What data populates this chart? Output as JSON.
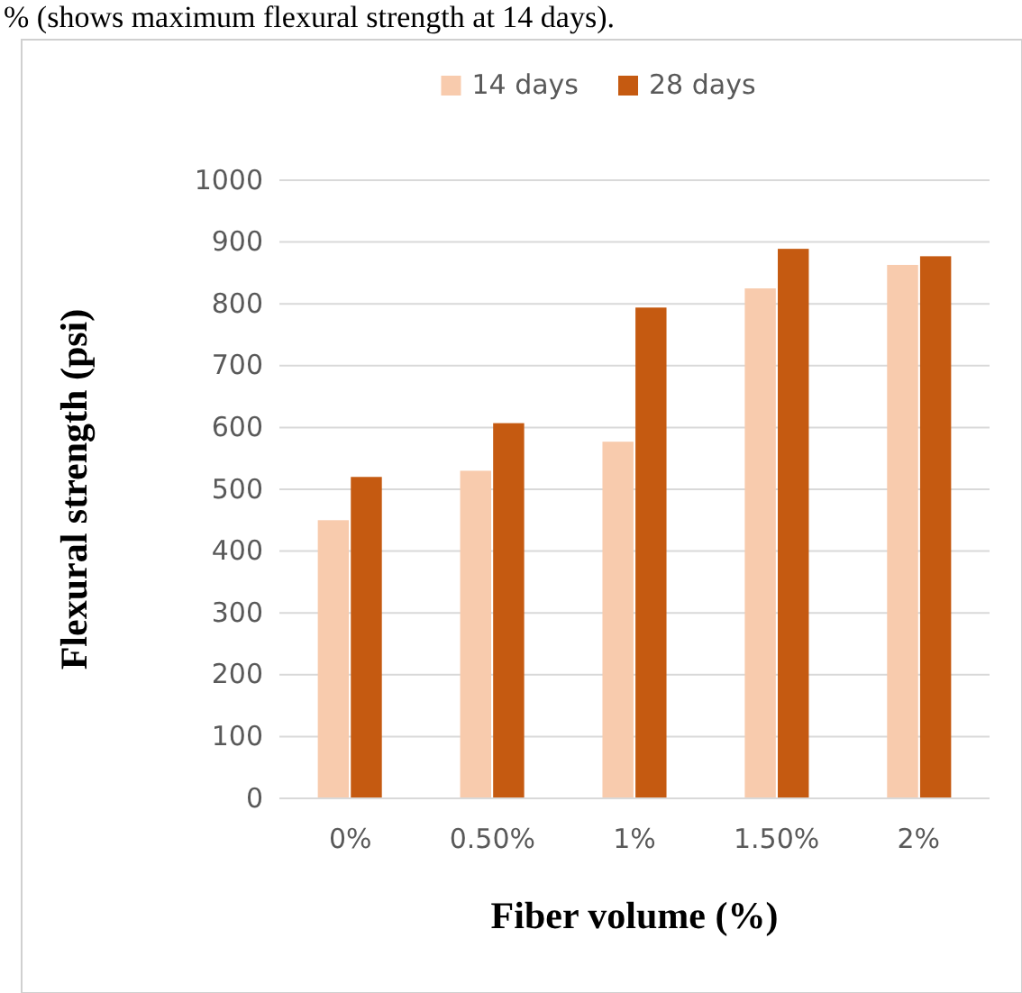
{
  "chart_data": {
    "type": "bar",
    "annotations": [
      "% (shows maximum flexural strength at 14 days)."
    ],
    "xlabel": "Fiber volume (%)",
    "ylabel": "Flexural strength (psi)",
    "categories": [
      "0%",
      "0.50%",
      "1%",
      "1.50%",
      "2%"
    ],
    "series": [
      {
        "name": "14 days",
        "color": "#f8cbad",
        "values": [
          450,
          530,
          577,
          825,
          863
        ]
      },
      {
        "name": "28 days",
        "color": "#c55a11",
        "values": [
          520,
          607,
          794,
          889,
          877
        ]
      }
    ],
    "ylim": [
      0,
      1000
    ],
    "yticks": [
      0,
      100,
      200,
      300,
      400,
      500,
      600,
      700,
      800,
      900,
      1000
    ],
    "grid": "y",
    "legend": "top"
  }
}
